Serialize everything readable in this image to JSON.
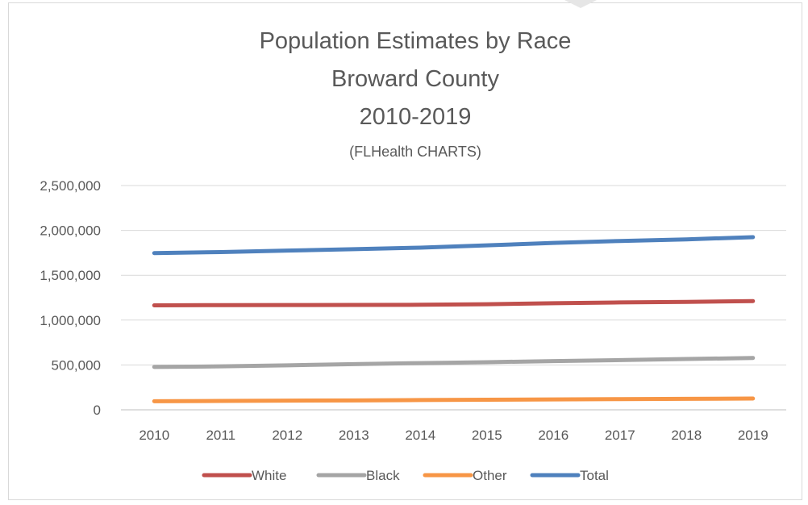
{
  "chart_data": {
    "type": "line",
    "title_lines": [
      "Population Estimates by Race",
      "Broward County",
      "2010-2019"
    ],
    "subtitle": "(FLHealth CHARTS)",
    "categories": [
      "2010",
      "2011",
      "2012",
      "2013",
      "2014",
      "2015",
      "2016",
      "2017",
      "2018",
      "2019"
    ],
    "ylim": [
      0,
      2500000
    ],
    "yticks": [
      0,
      500000,
      1000000,
      1500000,
      2000000,
      2500000
    ],
    "ytick_labels": [
      "0",
      "500,000",
      "1,000,000",
      "1,500,000",
      "2,000,000",
      "2,500,000"
    ],
    "grid": true,
    "legend_position": "bottom",
    "series": [
      {
        "name": "White",
        "color": "#c0504d",
        "values": [
          1165000,
          1167000,
          1168000,
          1169000,
          1171000,
          1177000,
          1188000,
          1197000,
          1203000,
          1212000
        ]
      },
      {
        "name": "Black",
        "color": "#a5a5a5",
        "values": [
          478000,
          484000,
          496000,
          509000,
          521000,
          531000,
          543000,
          554000,
          566000,
          578000
        ]
      },
      {
        "name": "Other",
        "color": "#f79646",
        "values": [
          96000,
          99000,
          102000,
          105000,
          109000,
          112000,
          116000,
          119000,
          122000,
          126000
        ]
      },
      {
        "name": "Total",
        "color": "#4f81bd",
        "values": [
          1747000,
          1758000,
          1775000,
          1791000,
          1808000,
          1833000,
          1860000,
          1882000,
          1900000,
          1925000
        ]
      }
    ]
  }
}
